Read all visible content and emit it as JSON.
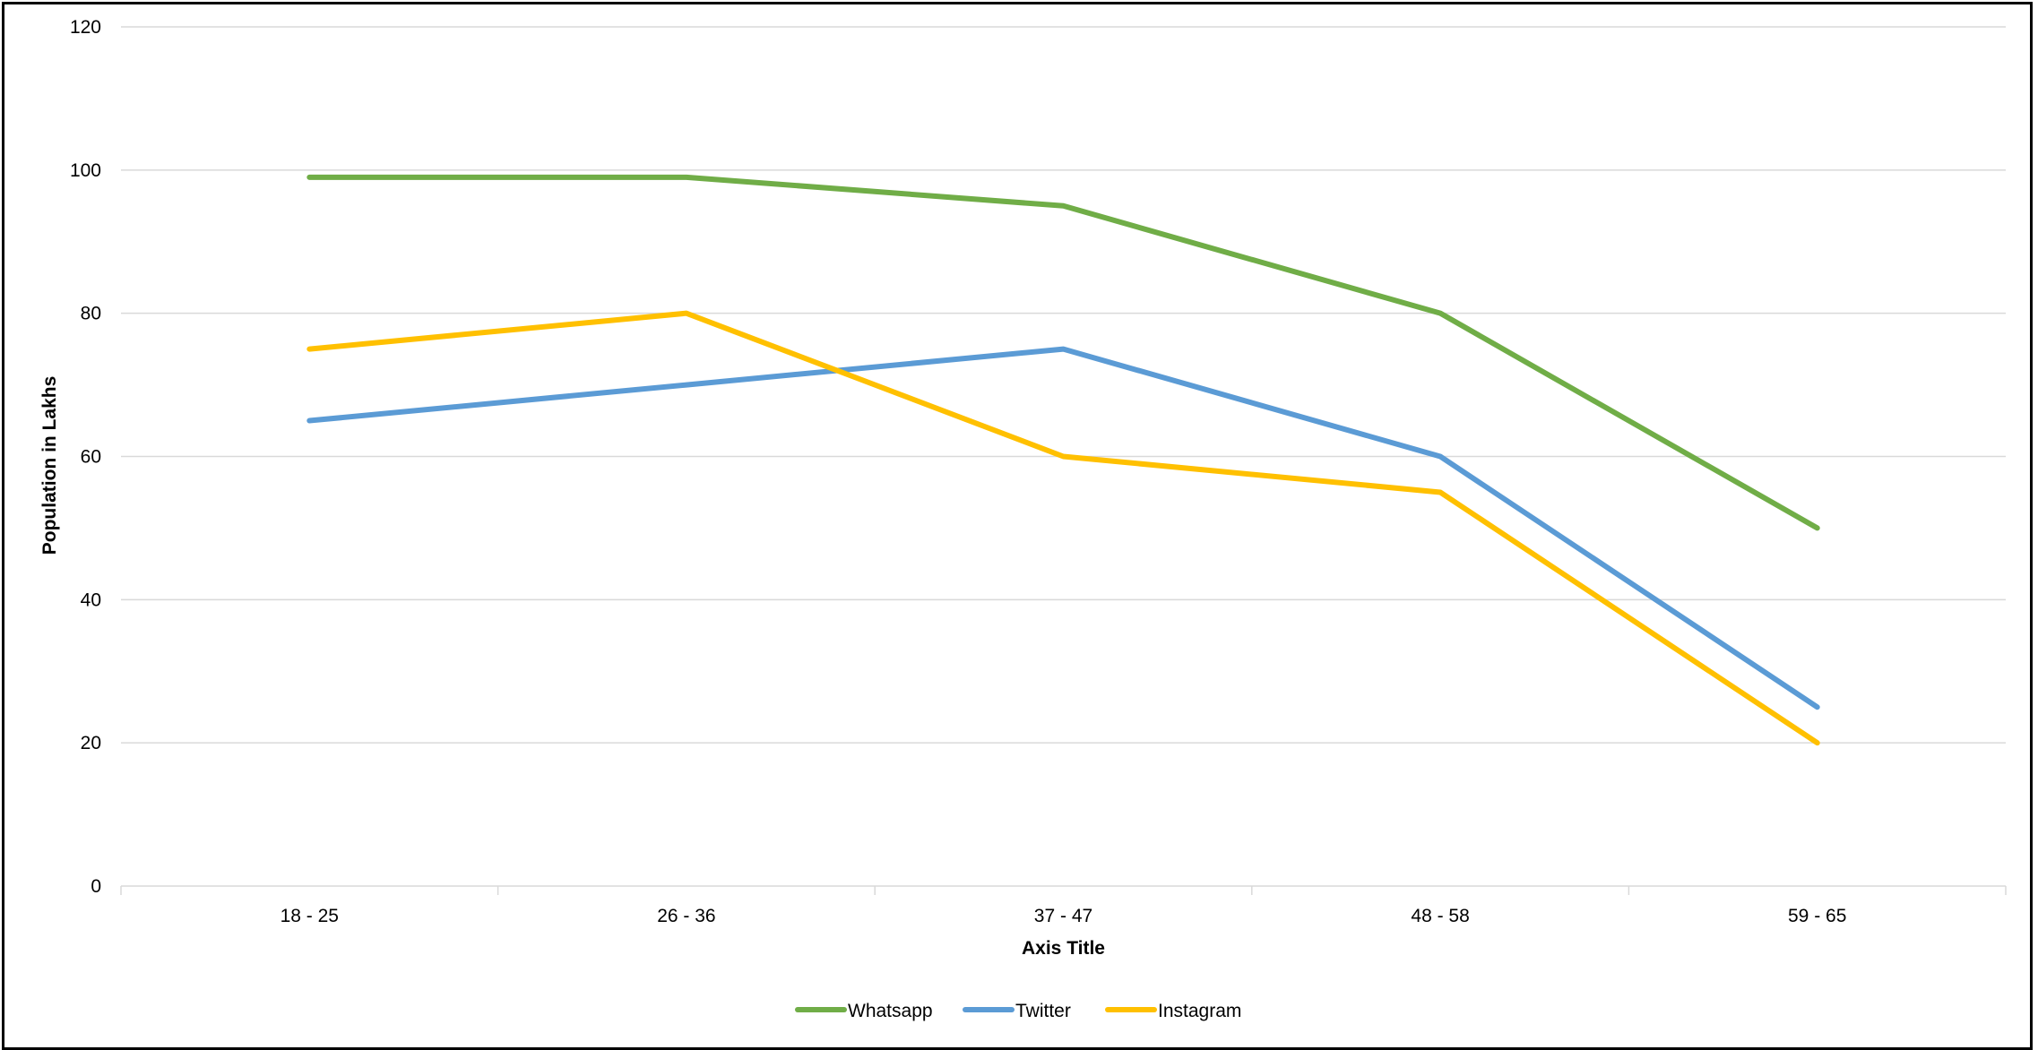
{
  "chart_data": {
    "type": "line",
    "title": "",
    "xlabel": "Axis Title",
    "ylabel": "Population in Lakhs",
    "categories": [
      "18 - 25",
      "26 - 36",
      "37 - 47",
      "48 - 58",
      "59 - 65"
    ],
    "ylim": [
      0,
      120
    ],
    "yticks": [
      0,
      20,
      40,
      60,
      80,
      100,
      120
    ],
    "grid": true,
    "legend_position": "bottom",
    "series": [
      {
        "name": "Whatsapp",
        "values": [
          99,
          99,
          95,
          80,
          50
        ],
        "color": "#70AD47"
      },
      {
        "name": "Twitter",
        "values": [
          65,
          70,
          75,
          60,
          25
        ],
        "color": "#5B9BD5"
      },
      {
        "name": "Instagram",
        "values": [
          75,
          80,
          60,
          55,
          20
        ],
        "color": "#FFC000"
      }
    ]
  }
}
